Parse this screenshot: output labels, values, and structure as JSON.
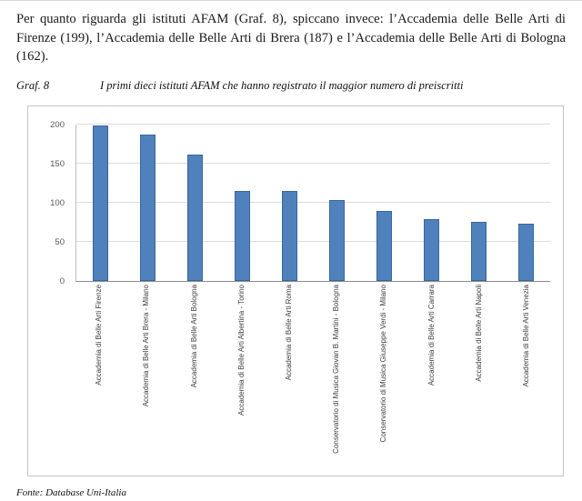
{
  "document": {
    "paragraph": "Per quanto riguarda gli istituti AFAM (Graf. 8), spiccano invece: l’Accademia delle Belle Arti di Firenze (199), l’Accademia delle Belle Arti di Brera (187) e l’Accademia delle Belle Arti di Bologna (162).",
    "source": "Fonte: Database Uni-Italia"
  },
  "caption": {
    "label": "Graf. 8",
    "title": "I primi dieci istituti AFAM che hanno registrato il maggior numero di preiscritti"
  },
  "chart_data": {
    "type": "bar",
    "title": "I primi dieci istituti AFAM che hanno registrato il maggior numero di preiscritti",
    "categories": [
      "Accademia di Belle Arti Firenze",
      "Accademia di Belle Arti Brera - Milano",
      "Accademia di Belle Arti Bologna",
      "Accademia di Belle Arti Albertina - Torino",
      "Accademia di Belle Arti Roma",
      "Conservatorio di Musica Giovan B. Martini - Bologna",
      "Conservatorio di Musica Giuseppe Verdi - Milano",
      "Accademia di Belle Arti Carrara",
      "Accademia di Belle Arti Napoli",
      "Accademia di Belle Arti Venezia"
    ],
    "values": [
      199,
      187,
      162,
      115,
      115,
      103,
      90,
      79,
      76,
      73
    ],
    "xlabel": "",
    "ylabel": "",
    "ylim": [
      0,
      200
    ],
    "yticks": [
      0,
      50,
      100,
      150,
      200
    ],
    "grid": true,
    "legend": "none",
    "bar_color": "#4f81bd"
  }
}
